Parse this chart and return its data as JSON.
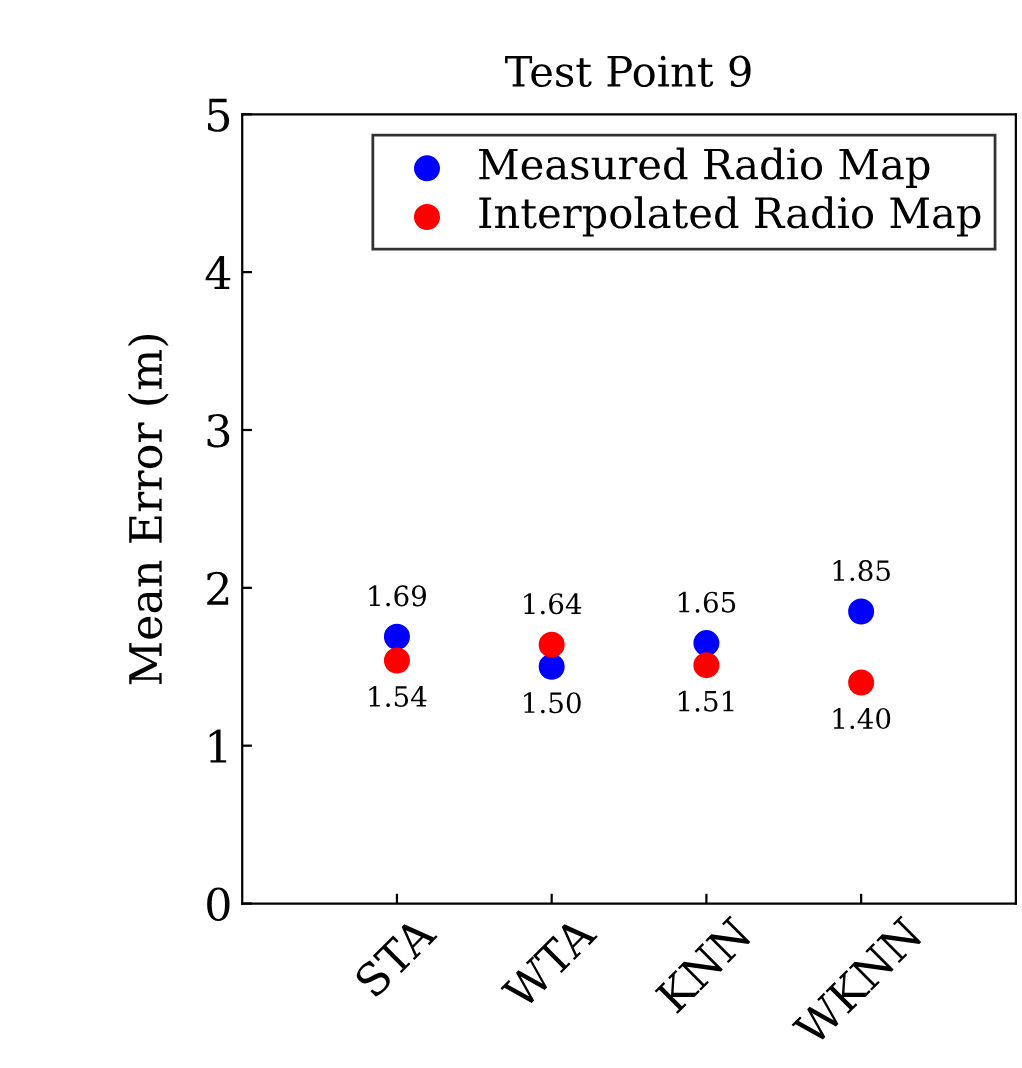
{
  "chart_data": {
    "type": "scatter",
    "title": "Test Point 9",
    "ylabel": "Mean Error (m)",
    "categories": [
      "STA",
      "WTA",
      "KNN",
      "WKNN"
    ],
    "series": [
      {
        "name": "Measured Radio Map",
        "color": "#0000ff",
        "values": [
          1.69,
          1.5,
          1.65,
          1.85
        ],
        "value_labels": [
          "1.69",
          "1.50",
          "1.65",
          "1.85"
        ]
      },
      {
        "name": "Interpolated Radio Map",
        "color": "#ff0000",
        "values": [
          1.54,
          1.64,
          1.51,
          1.4
        ],
        "value_labels": [
          "1.54",
          "1.64",
          "1.51",
          "1.40"
        ]
      }
    ],
    "ylim": [
      0,
      5
    ],
    "yticks": [
      0,
      1,
      2,
      3,
      4,
      5
    ],
    "legend": "top right",
    "marker": "circle",
    "grid": false
  }
}
